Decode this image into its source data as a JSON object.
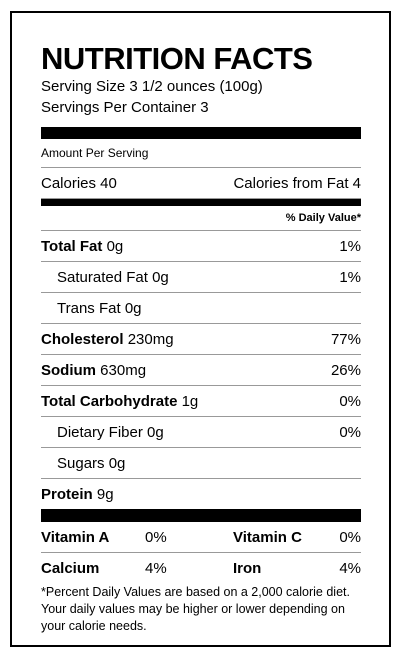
{
  "title": "NUTRITION FACTS",
  "serving_size": "Serving Size 3 1/2 ounces (100g)",
  "servings_per_container": "Servings Per Container 3",
  "amount_per_serving": "Amount Per Serving",
  "calories": {
    "label": "Calories 40",
    "from_fat": "Calories from Fat 4"
  },
  "daily_value_header": "% Daily Value*",
  "nutrients": [
    {
      "name": "Total Fat",
      "amount": "0g",
      "dv": "1%"
    },
    {
      "name": "Saturated Fat",
      "amount": "0g",
      "dv": "1%"
    },
    {
      "name": "Trans Fat",
      "amount": "0g",
      "dv": ""
    },
    {
      "name": "Cholesterol",
      "amount": "230mg",
      "dv": "77%"
    },
    {
      "name": "Sodium",
      "amount": "630mg",
      "dv": "26%"
    },
    {
      "name": "Total Carbohydrate",
      "amount": "1g",
      "dv": "0%"
    },
    {
      "name": "Dietary Fiber",
      "amount": "0g",
      "dv": "0%"
    },
    {
      "name": "Sugars",
      "amount": "0g",
      "dv": ""
    },
    {
      "name": "Protein",
      "amount": "9g",
      "dv": ""
    }
  ],
  "vitamins": [
    {
      "name": "Vitamin A",
      "dv": "0%",
      "name2": "Vitamin C",
      "dv2": "0%"
    },
    {
      "name": "Calcium",
      "dv": "4%",
      "name2": "Iron",
      "dv2": "4%"
    }
  ],
  "footnote": "*Percent Daily Values are based on a 2,000 calorie diet. Your daily values may be higher or lower depending on your calorie needs."
}
